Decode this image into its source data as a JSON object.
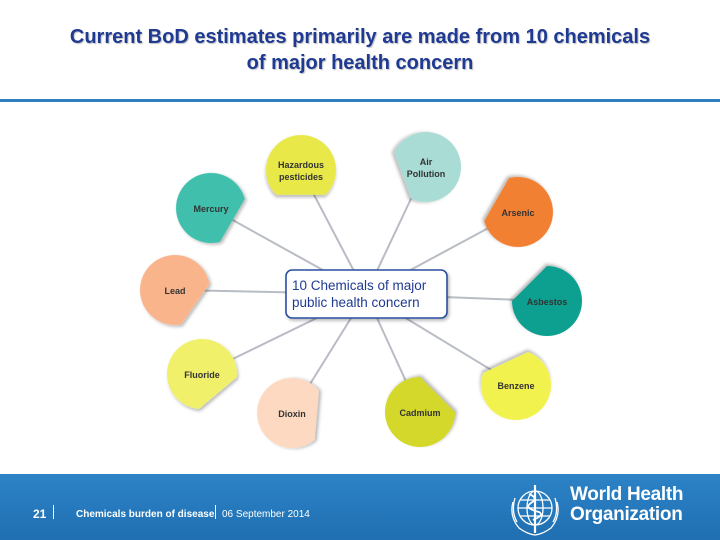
{
  "slide": {
    "title_line1": "Current BoD estimates primarily are made from 10 chemicals",
    "title_line2": "of major health concern"
  },
  "diagram": {
    "center_line1": "10 Chemicals of major",
    "center_line2": "public health concern",
    "nodes": [
      {
        "label_lines": [
          "Hazardous",
          "pesticides"
        ],
        "color": "#e8e84a"
      },
      {
        "label_lines": [
          "Air",
          "Pollution"
        ],
        "color": "#a8dcd4"
      },
      {
        "label_lines": [
          "Mercury"
        ],
        "color": "#3fbfad"
      },
      {
        "label_lines": [
          "Arsenic"
        ],
        "color": "#f28033"
      },
      {
        "label_lines": [
          "Lead"
        ],
        "color": "#f9b48b"
      },
      {
        "label_lines": [
          "Asbestos"
        ],
        "color": "#11a090"
      },
      {
        "label_lines": [
          "Fluoride"
        ],
        "color": "#f0f06a"
      },
      {
        "label_lines": [
          "Benzene"
        ],
        "color": "#f2f250"
      },
      {
        "label_lines": [
          "Dioxin"
        ],
        "color": "#fdd9c1"
      },
      {
        "label_lines": [
          "Cadmium"
        ],
        "color": "#d3d82c"
      }
    ]
  },
  "footer": {
    "page_number": "21",
    "topic": "Chemicals burden of disease",
    "date": "06 September 2014",
    "org_line1": "World Health",
    "org_line2": "Organization"
  },
  "colors": {
    "title": "#1f3a93",
    "rule": "#2f7fc1",
    "footer_bg": "#2c83c6"
  }
}
